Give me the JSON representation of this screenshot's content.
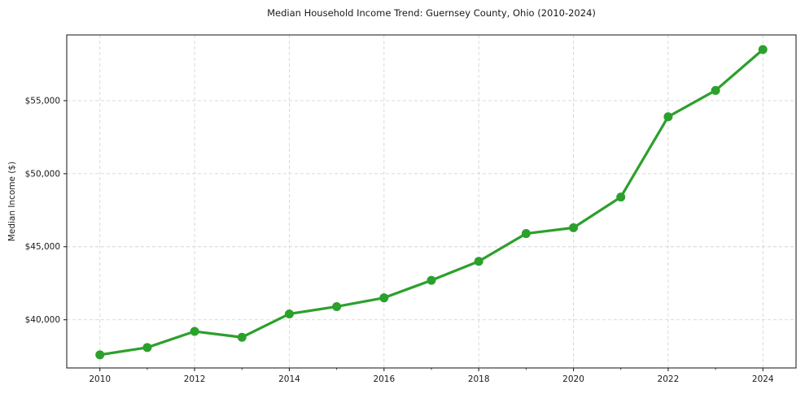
{
  "figure": {
    "title": "Median Household Income Trend: Guernsey County, Ohio (2010-2024)",
    "ylabel": "Median Income ($)"
  },
  "chart_data": {
    "type": "line",
    "title": "Median Household Income Trend: Guernsey County, Ohio (2010-2024)",
    "xlabel": "",
    "ylabel": "Median Income ($)",
    "x": [
      2010,
      2011,
      2012,
      2013,
      2014,
      2015,
      2016,
      2017,
      2018,
      2019,
      2020,
      2021,
      2022,
      2023,
      2024
    ],
    "series": [
      {
        "name": "Median Household Income",
        "values": [
          37600,
          38100,
          39200,
          38800,
          40400,
          40900,
          41500,
          42700,
          44000,
          45900,
          46300,
          48400,
          53900,
          55700,
          58500
        ],
        "color": "#2ca02c",
        "marker": "circle",
        "marker_radius": 5.5,
        "line_width": 3.2
      }
    ],
    "xlim": [
      2009.3,
      2024.7
    ],
    "ylim": [
      36700,
      59500
    ],
    "xticks": {
      "values": [
        2010,
        2012,
        2014,
        2016,
        2018,
        2020,
        2022,
        2024
      ],
      "labels": [
        "2010",
        "2012",
        "2014",
        "2016",
        "2018",
        "2020",
        "2022",
        "2024"
      ]
    },
    "minor_xticks": [
      2011,
      2013,
      2015,
      2017,
      2019,
      2021,
      2023
    ],
    "yticks": {
      "values": [
        40000,
        45000,
        50000,
        55000
      ],
      "labels": [
        "$40,000",
        "$45,000",
        "$50,000",
        "$55,000"
      ]
    },
    "grid": true,
    "grid_style": "dashed",
    "legend_position": "none",
    "colors": {
      "line": "#2ca02c",
      "grid": "#d5d5d5",
      "axis": "#262626",
      "tick_text": "#1a1a1a",
      "background": "#ffffff"
    }
  }
}
